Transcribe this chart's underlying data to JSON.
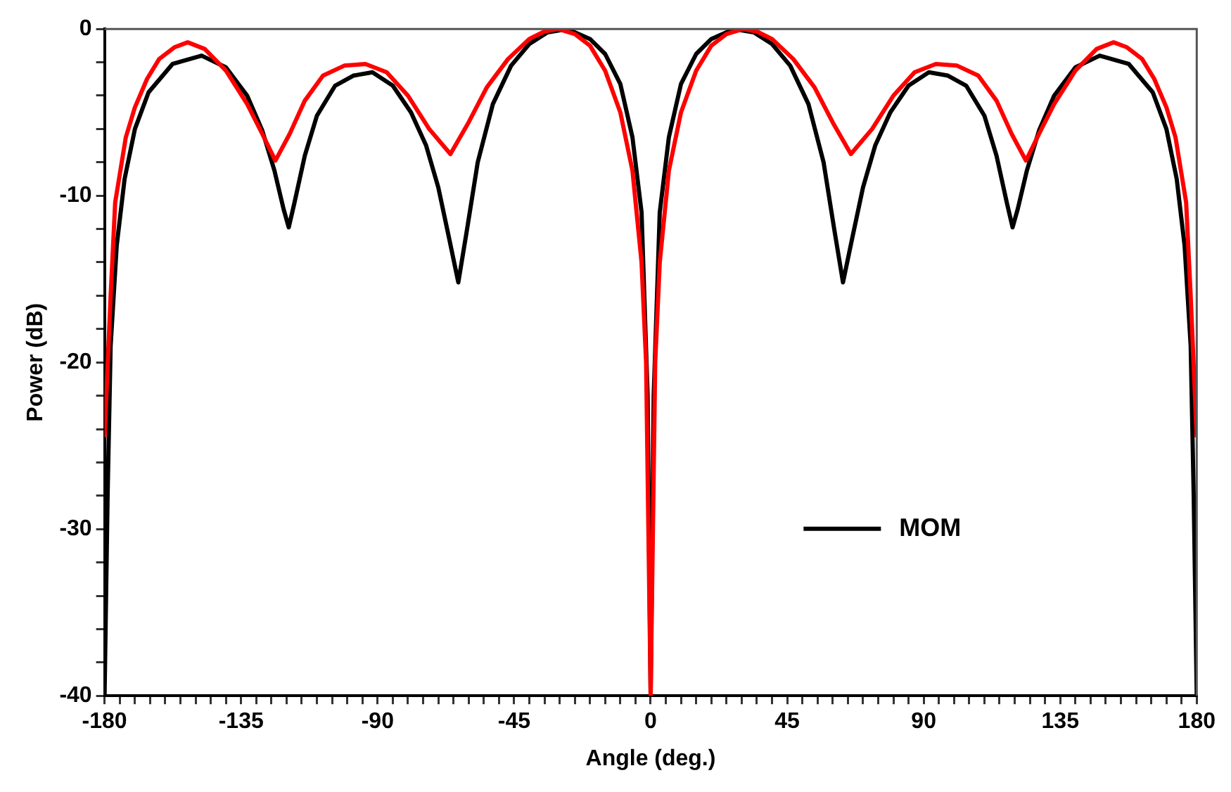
{
  "chart_data": {
    "type": "line",
    "xlabel": "Angle (deg.)",
    "ylabel": "Power (dB)",
    "xlim": [
      -180,
      180
    ],
    "ylim": [
      -40,
      0
    ],
    "xticks": [
      -180,
      {
        "value": -175,
        "label": null
      },
      {
        "value": -170,
        "label": null
      },
      {
        "value": -165,
        "label": null
      },
      {
        "value": -160,
        "label": null
      },
      {
        "value": -155,
        "label": null
      },
      {
        "value": -150,
        "label": null
      },
      {
        "value": -145,
        "label": null
      },
      {
        "value": -140,
        "label": null
      },
      -135,
      {
        "value": -130,
        "label": null
      },
      {
        "value": -125,
        "label": null
      },
      {
        "value": -120,
        "label": null
      },
      {
        "value": -115,
        "label": null
      },
      {
        "value": -110,
        "label": null
      },
      {
        "value": -105,
        "label": null
      },
      {
        "value": -100,
        "label": null
      },
      {
        "value": -95,
        "label": null
      },
      -90,
      {
        "value": -85,
        "label": null
      },
      {
        "value": -80,
        "label": null
      },
      {
        "value": -75,
        "label": null
      },
      {
        "value": -70,
        "label": null
      },
      {
        "value": -65,
        "label": null
      },
      {
        "value": -60,
        "label": null
      },
      {
        "value": -55,
        "label": null
      },
      {
        "value": -50,
        "label": null
      },
      -45,
      {
        "value": -40,
        "label": null
      },
      {
        "value": -35,
        "label": null
      },
      {
        "value": -30,
        "label": null
      },
      {
        "value": -25,
        "label": null
      },
      {
        "value": -20,
        "label": null
      },
      {
        "value": -15,
        "label": null
      },
      {
        "value": -10,
        "label": null
      },
      {
        "value": -5,
        "label": null
      },
      0,
      {
        "value": 5,
        "label": null
      },
      {
        "value": 10,
        "label": null
      },
      {
        "value": 15,
        "label": null
      },
      {
        "value": 20,
        "label": null
      },
      {
        "value": 25,
        "label": null
      },
      {
        "value": 30,
        "label": null
      },
      {
        "value": 35,
        "label": null
      },
      {
        "value": 40,
        "label": null
      },
      45,
      {
        "value": 50,
        "label": null
      },
      {
        "value": 55,
        "label": null
      },
      {
        "value": 60,
        "label": null
      },
      {
        "value": 65,
        "label": null
      },
      {
        "value": 70,
        "label": null
      },
      {
        "value": 75,
        "label": null
      },
      {
        "value": 80,
        "label": null
      },
      {
        "value": 85,
        "label": null
      },
      90,
      {
        "value": 95,
        "label": null
      },
      {
        "value": 100,
        "label": null
      },
      {
        "value": 105,
        "label": null
      },
      {
        "value": 110,
        "label": null
      },
      {
        "value": 115,
        "label": null
      },
      {
        "value": 120,
        "label": null
      },
      {
        "value": 125,
        "label": null
      },
      {
        "value": 130,
        "label": null
      },
      135,
      {
        "value": 140,
        "label": null
      },
      {
        "value": 145,
        "label": null
      },
      {
        "value": 150,
        "label": null
      },
      {
        "value": 155,
        "label": null
      },
      {
        "value": 160,
        "label": null
      },
      {
        "value": 165,
        "label": null
      },
      {
        "value": 170,
        "label": null
      },
      {
        "value": 175,
        "label": null
      },
      180
    ],
    "yticks": [
      -40,
      {
        "value": -38,
        "label": null
      },
      {
        "value": -36,
        "label": null
      },
      {
        "value": -34,
        "label": null
      },
      {
        "value": -32,
        "label": null
      },
      -30,
      {
        "value": -28,
        "label": null
      },
      {
        "value": -26,
        "label": null
      },
      {
        "value": -24,
        "label": null
      },
      {
        "value": -22,
        "label": null
      },
      -20,
      {
        "value": -18,
        "label": null
      },
      {
        "value": -16,
        "label": null
      },
      {
        "value": -14,
        "label": null
      },
      {
        "value": -12,
        "label": null
      },
      -10,
      {
        "value": -8,
        "label": null
      },
      {
        "value": -6,
        "label": null
      },
      {
        "value": -4,
        "label": null
      },
      {
        "value": -2,
        "label": null
      },
      0
    ],
    "grid": false,
    "legend": "right",
    "marker": "none",
    "line_style": "solid",
    "series": [
      {
        "color": "#ff0000",
        "x": [
          -180,
          -178,
          -176.5,
          -173,
          -170,
          -166,
          -162,
          -157,
          -152.6,
          -147,
          -140,
          -133,
          -128,
          -123.7,
          -119,
          -114,
          -108,
          -101,
          -94,
          -87,
          -80,
          -73,
          -66,
          -60,
          -54,
          -47,
          -40,
          -35,
          -30.6,
          -25,
          -20,
          -15,
          -10,
          -6,
          -3,
          -1.5,
          0,
          1.5,
          3,
          6,
          10,
          15,
          20,
          25,
          30.6,
          35,
          40,
          47,
          54,
          60,
          66,
          73,
          80,
          87,
          94,
          101,
          108,
          114,
          119,
          123.7,
          128,
          133,
          140,
          147,
          152.6,
          157,
          162,
          166,
          170,
          173,
          176.5,
          178,
          180
        ],
        "values": [
          -24.5,
          -16,
          -10.4,
          -6.5,
          -4.7,
          -3,
          -1.8,
          -1.1,
          -0.8,
          -1.2,
          -2.5,
          -4.5,
          -6.3,
          -7.9,
          -6.3,
          -4.3,
          -2.8,
          -2.2,
          -2.1,
          -2.6,
          -4,
          -6,
          -7.5,
          -5.6,
          -3.5,
          -1.8,
          -0.6,
          -0.15,
          0,
          -0.3,
          -1,
          -2.5,
          -5,
          -8.5,
          -14,
          -20,
          -40,
          -20,
          -14,
          -8.5,
          -5,
          -2.5,
          -1,
          -0.3,
          0,
          -0.15,
          -0.6,
          -1.8,
          -3.5,
          -5.6,
          -7.5,
          -6,
          -4,
          -2.6,
          -2.1,
          -2.2,
          -2.8,
          -4.3,
          -6.3,
          -7.9,
          -6.3,
          -4.5,
          -2.5,
          -1.2,
          -0.8,
          -1.1,
          -1.8,
          -3,
          -4.7,
          -6.5,
          -10.4,
          -16,
          -24.5
        ]
      },
      {
        "name": "MOM",
        "color": "#000000",
        "x": [
          -180,
          -179,
          -178,
          -176,
          -173.4,
          -170,
          -165.5,
          -157.6,
          -148,
          -140,
          -133,
          -128,
          -124,
          -121,
          -119.3,
          -117.5,
          -114,
          -110,
          -104,
          -98,
          -91.7,
          -85,
          -79,
          -74,
          -70,
          -66.5,
          -63.4,
          -60.5,
          -57,
          -52,
          -46,
          -40,
          -34,
          -27.5,
          -20,
          -15,
          -10,
          -6,
          -3,
          -1,
          0,
          1,
          3,
          6,
          10,
          15,
          20,
          27.5,
          34,
          40,
          46,
          52,
          57,
          60.5,
          63.4,
          66.5,
          70,
          74,
          79,
          85,
          91.7,
          98,
          104,
          110,
          114,
          117.5,
          119.3,
          121,
          124,
          128,
          133,
          140,
          148,
          157.6,
          165.5,
          170,
          173.4,
          176,
          178,
          179,
          180
        ],
        "values": [
          -40,
          -28,
          -19,
          -13,
          -9,
          -6,
          -3.8,
          -2.1,
          -1.6,
          -2.3,
          -4,
          -6.1,
          -8.5,
          -10.8,
          -11.9,
          -10.5,
          -7.6,
          -5.2,
          -3.4,
          -2.8,
          -2.6,
          -3.4,
          -5,
          -7,
          -9.5,
          -12.5,
          -15.2,
          -12,
          -8,
          -4.5,
          -2.2,
          -0.9,
          -0.2,
          0,
          -0.6,
          -1.5,
          -3.3,
          -6.5,
          -11,
          -22,
          -40,
          -22,
          -11,
          -6.5,
          -3.3,
          -1.5,
          -0.6,
          0,
          -0.2,
          -0.9,
          -2.2,
          -4.5,
          -8,
          -12,
          -15.2,
          -12.5,
          -9.5,
          -7,
          -5,
          -3.4,
          -2.6,
          -2.8,
          -3.4,
          -5.2,
          -7.6,
          -10.5,
          -11.9,
          -10.8,
          -8.5,
          -6.1,
          -4,
          -2.3,
          -1.6,
          -2.1,
          -3.8,
          -6,
          -9,
          -13,
          -19,
          -28,
          -40
        ]
      }
    ]
  }
}
